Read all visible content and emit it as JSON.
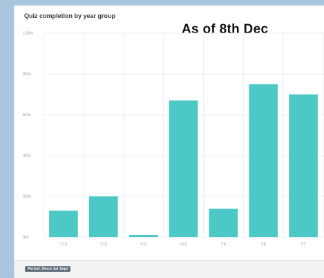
{
  "annotation": "As of 8th Dec",
  "footer": {
    "period": "Period: Since 1st Sept"
  },
  "colors": {
    "bar": "#4cc8c6",
    "grid": "#eceef0",
    "background": "#a9c6dc"
  },
  "chart_data": {
    "type": "bar",
    "title": "Quiz completion by year group",
    "xlabel": "",
    "ylabel": "",
    "categories": [
      "Y13",
      "Y12",
      "Y11",
      "Y10",
      "Y9",
      "Y8",
      "Y7"
    ],
    "values": [
      13,
      20,
      1,
      67,
      14,
      75,
      70
    ],
    "ylim": [
      0,
      100
    ],
    "yticks": [
      "0%",
      "20%",
      "40%",
      "60%",
      "80%",
      "100%"
    ],
    "grid": true,
    "legend": "none"
  }
}
